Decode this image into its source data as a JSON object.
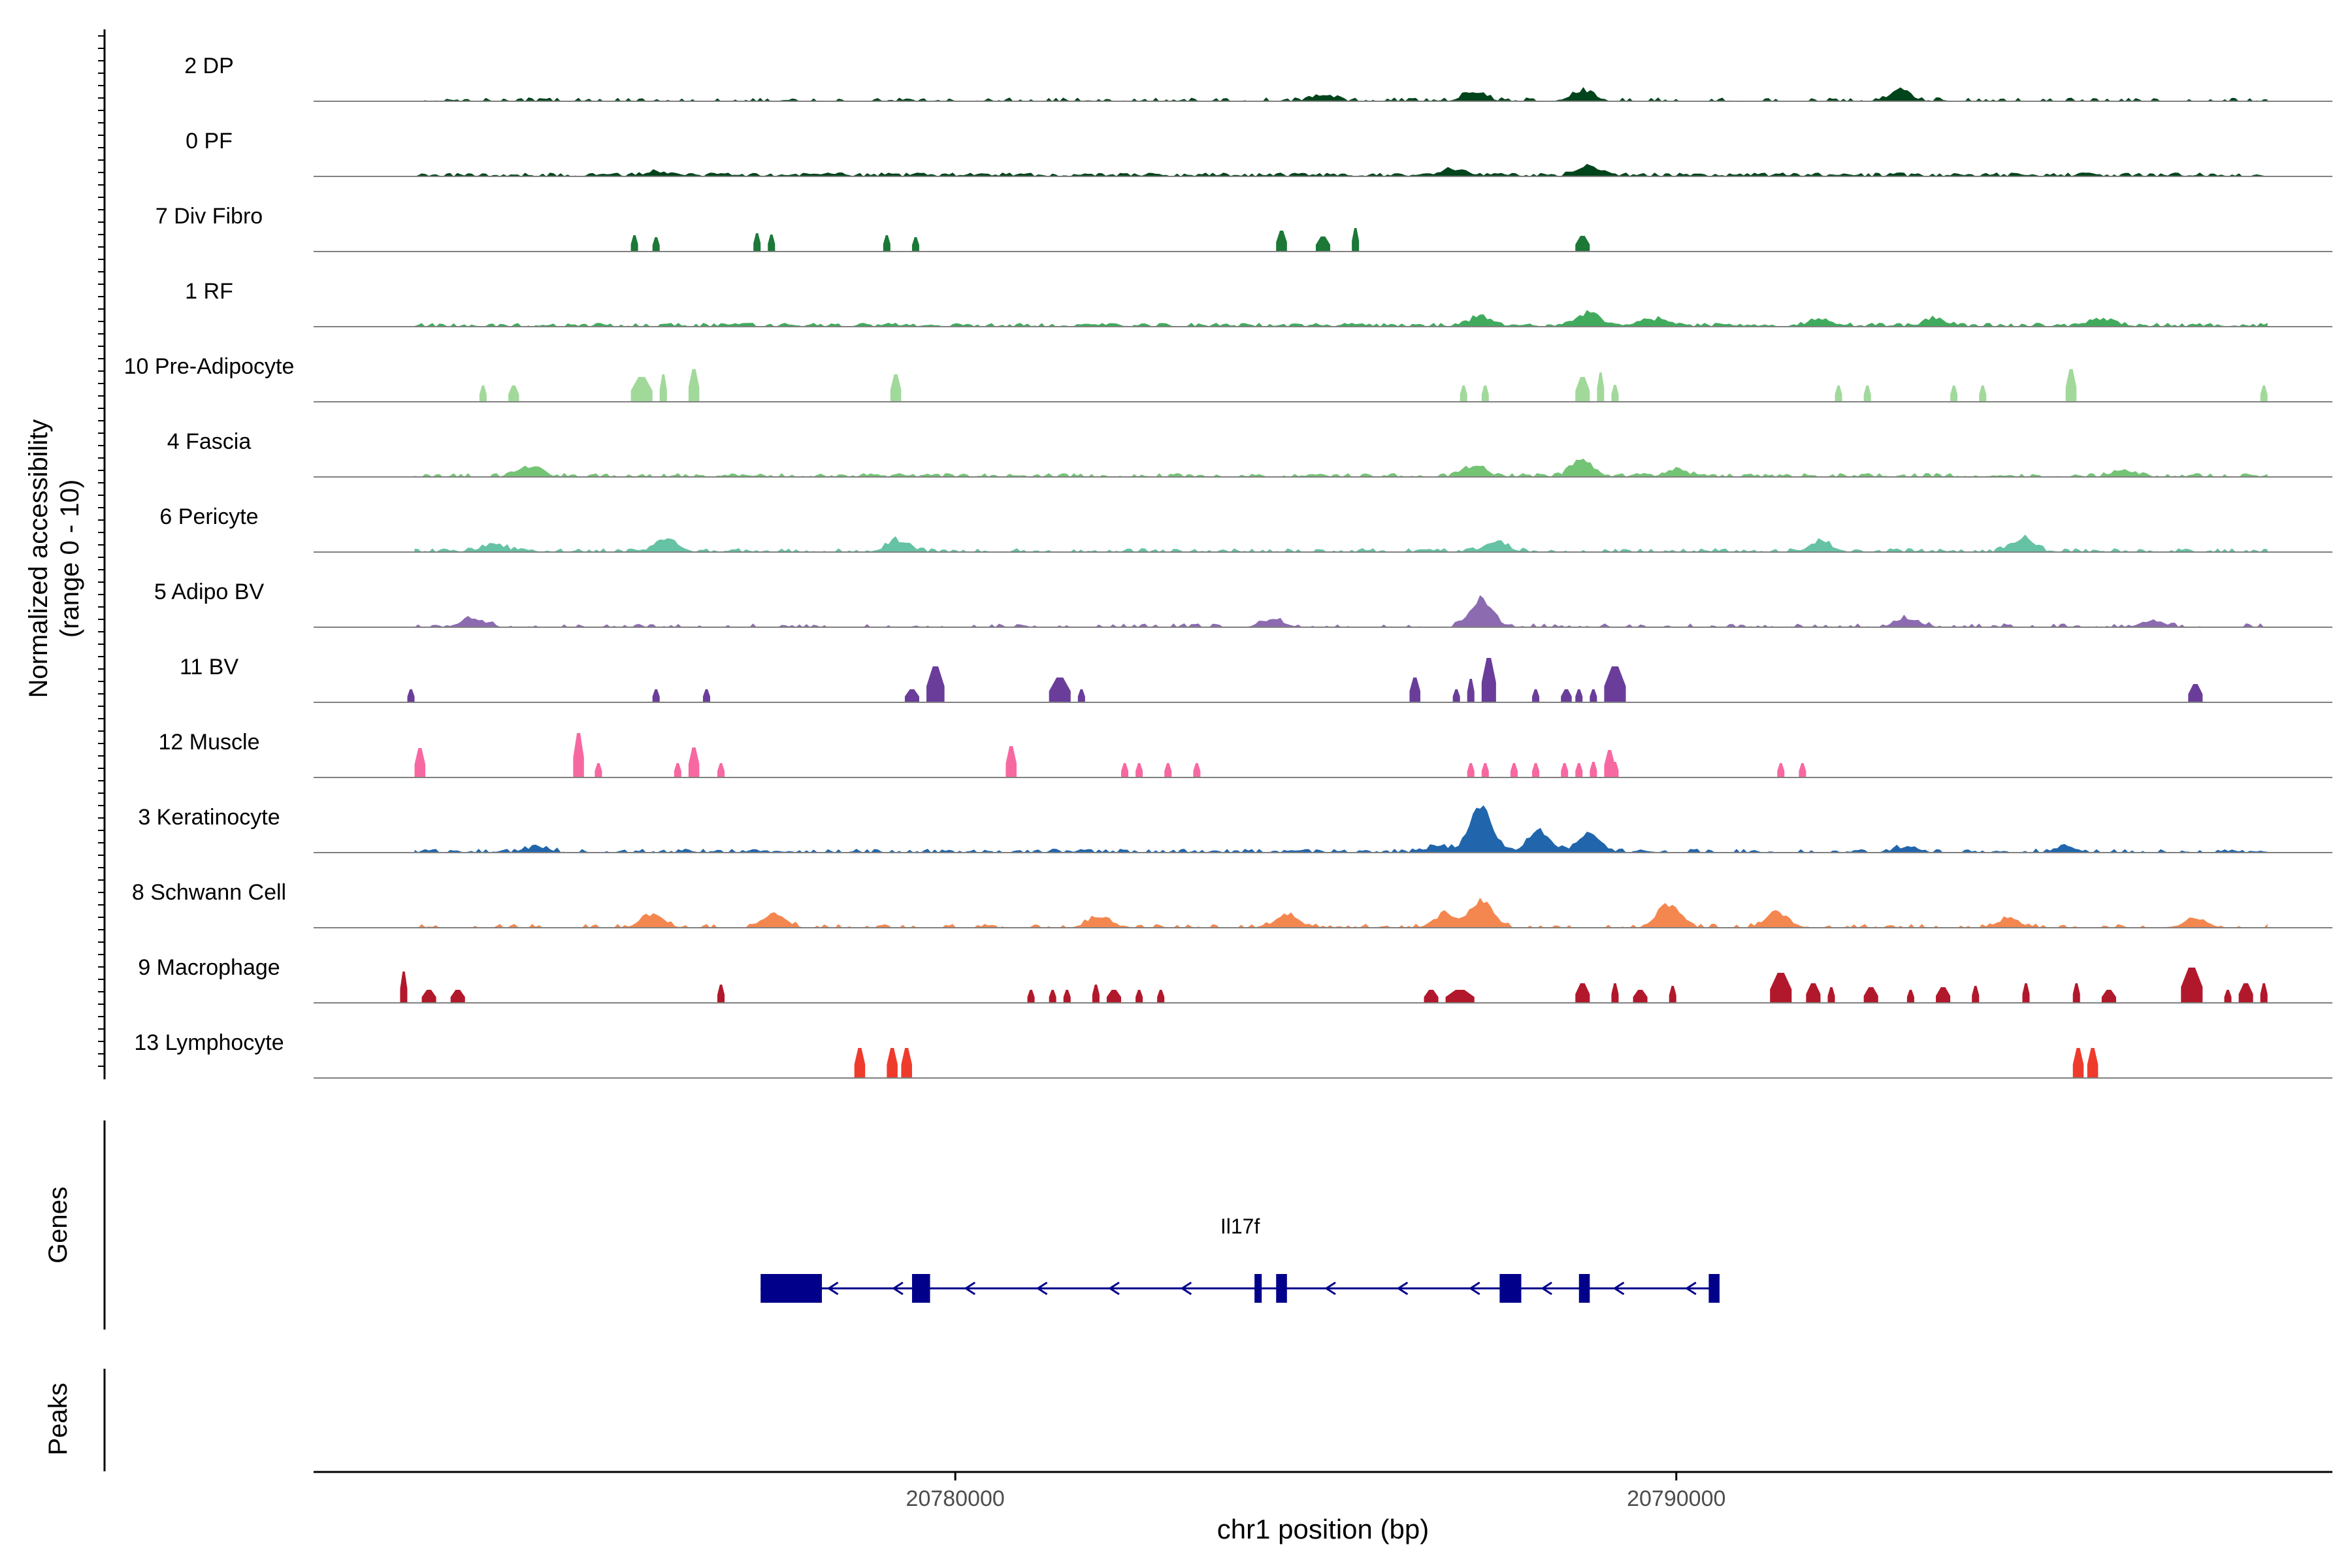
{
  "chart_data": {
    "type": "area",
    "title": "",
    "xlabel": "chr1 position (bp)",
    "ylabel": "Normalized accessibility",
    "ylabel_range": "(range 0 - 10)",
    "ylim": [
      0,
      10
    ],
    "xlim": [
      20771100,
      20799100
    ],
    "x_ticks": [
      20780000,
      20790000
    ],
    "x_tick_labels": [
      "20780000",
      "20790000"
    ],
    "panel_labels": {
      "genes": "Genes",
      "peaks": "Peaks"
    },
    "gene": {
      "name": "Il17f",
      "strand": "-",
      "color": "#00008B",
      "start": 20777300,
      "end": 20790600,
      "exons": [
        [
          20777300,
          20778150
        ],
        [
          20779400,
          20779650
        ],
        [
          20784150,
          20784250
        ],
        [
          20784450,
          20784600
        ],
        [
          20787550,
          20787850
        ],
        [
          20788650,
          20788800
        ],
        [
          20790450,
          20790600
        ]
      ],
      "arrows": [
        20778300,
        20779200,
        20780200,
        20781200,
        20782200,
        20783200,
        20785200,
        20786200,
        20787200,
        20788200,
        20789200,
        20790200
      ]
    },
    "tracks": [
      {
        "name": "2 DP",
        "color": "#00441B",
        "style": "dense",
        "density": 0.45,
        "peaks": [
          [
            20788700,
            1.8
          ],
          [
            20787200,
            1.6
          ],
          [
            20793100,
            1.7
          ],
          [
            20785100,
            1.0
          ]
        ]
      },
      {
        "name": "0 PF",
        "color": "#00441B",
        "style": "dense",
        "density": 0.9,
        "peaks": [
          [
            20788800,
            1.5
          ],
          [
            20786900,
            1.1
          ],
          [
            20775900,
            0.7
          ]
        ]
      },
      {
        "name": "7 Div Fibro",
        "color": "#1B7837",
        "style": "blocks",
        "blocks": [
          [
            20775500,
            20775600,
            2.5
          ],
          [
            20775800,
            20775900,
            2.2
          ],
          [
            20777200,
            20777300,
            2.8
          ],
          [
            20777400,
            20777500,
            2.6
          ],
          [
            20779000,
            20779100,
            2.5
          ],
          [
            20779400,
            20779500,
            2.2
          ],
          [
            20784450,
            20784600,
            3.2
          ],
          [
            20785000,
            20785200,
            2.3
          ],
          [
            20785500,
            20785600,
            3.6
          ],
          [
            20788600,
            20788800,
            2.4
          ]
        ]
      },
      {
        "name": "1 RF",
        "color": "#41AB5D",
        "style": "dense",
        "density": 0.85,
        "peaks": [
          [
            20788800,
            2.2
          ],
          [
            20787300,
            1.6
          ],
          [
            20792000,
            1.4
          ],
          [
            20793600,
            1.3
          ],
          [
            20795900,
            1.2
          ],
          [
            20789700,
            1.2
          ]
        ]
      },
      {
        "name": "10 Pre-Adipocyte",
        "color": "#A1D99B",
        "style": "blocks",
        "blocks": [
          [
            20773400,
            20773500,
            2.5
          ],
          [
            20773800,
            20773950,
            2.5
          ],
          [
            20775500,
            20775800,
            3.8
          ],
          [
            20775900,
            20776000,
            4.2
          ],
          [
            20776300,
            20776450,
            5.0
          ],
          [
            20779100,
            20779250,
            4.2
          ],
          [
            20787000,
            20787100,
            2.5
          ],
          [
            20787300,
            20787400,
            2.5
          ],
          [
            20788600,
            20788800,
            3.8
          ],
          [
            20788900,
            20789000,
            4.5
          ],
          [
            20789100,
            20789200,
            2.6
          ],
          [
            20792200,
            20792300,
            2.5
          ],
          [
            20792600,
            20792700,
            2.5
          ],
          [
            20793800,
            20793900,
            2.5
          ],
          [
            20794200,
            20794300,
            2.5
          ],
          [
            20795400,
            20795550,
            5.0
          ],
          [
            20798100,
            20798200,
            2.5
          ]
        ]
      },
      {
        "name": "4 Fascia",
        "color": "#74C476",
        "style": "dense",
        "density": 0.7,
        "peaks": [
          [
            20788700,
            2.8
          ],
          [
            20787200,
            1.8
          ],
          [
            20774100,
            1.8
          ],
          [
            20796200,
            1.2
          ],
          [
            20790000,
            1.2
          ]
        ]
      },
      {
        "name": "6 Pericyte",
        "color": "#66C2A4",
        "style": "dense",
        "density": 0.55,
        "peaks": [
          [
            20776000,
            2.4
          ],
          [
            20779200,
            2.0
          ],
          [
            20794800,
            2.3
          ],
          [
            20787500,
            1.8
          ],
          [
            20773600,
            1.4
          ],
          [
            20792000,
            1.8
          ]
        ]
      },
      {
        "name": "5 Adipo BV",
        "color": "#8C6BB1",
        "style": "dense",
        "density": 0.38,
        "peaks": [
          [
            20787300,
            4.6
          ],
          [
            20773300,
            1.6
          ],
          [
            20793200,
            1.6
          ],
          [
            20784400,
            1.4
          ],
          [
            20796600,
            1.2
          ]
        ]
      },
      {
        "name": "11 BV",
        "color": "#6A3D9A",
        "style": "blocks",
        "blocks": [
          [
            20772400,
            20772500,
            2.0
          ],
          [
            20775800,
            20775900,
            2.0
          ],
          [
            20776500,
            20776600,
            2.0
          ],
          [
            20779300,
            20779500,
            2.0
          ],
          [
            20779600,
            20779850,
            5.5
          ],
          [
            20781300,
            20781600,
            3.8
          ],
          [
            20781700,
            20781800,
            2.0
          ],
          [
            20786300,
            20786450,
            3.8
          ],
          [
            20786900,
            20787000,
            2.0
          ],
          [
            20787100,
            20787200,
            3.6
          ],
          [
            20787300,
            20787500,
            6.8
          ],
          [
            20788000,
            20788100,
            2.0
          ],
          [
            20788400,
            20788550,
            2.0
          ],
          [
            20788600,
            20788700,
            2.0
          ],
          [
            20788800,
            20788900,
            2.0
          ],
          [
            20789000,
            20789300,
            5.5
          ],
          [
            20797100,
            20797300,
            2.8
          ]
        ]
      },
      {
        "name": "12 Muscle",
        "color": "#F768A1",
        "style": "blocks",
        "blocks": [
          [
            20772500,
            20772650,
            4.5
          ],
          [
            20774700,
            20774850,
            6.8
          ],
          [
            20775000,
            20775100,
            2.2
          ],
          [
            20776100,
            20776200,
            2.2
          ],
          [
            20776300,
            20776450,
            4.6
          ],
          [
            20776700,
            20776800,
            2.2
          ],
          [
            20780700,
            20780850,
            4.8
          ],
          [
            20782300,
            20782400,
            2.2
          ],
          [
            20782500,
            20782600,
            2.2
          ],
          [
            20782900,
            20783000,
            2.2
          ],
          [
            20783300,
            20783400,
            2.2
          ],
          [
            20787100,
            20787200,
            2.2
          ],
          [
            20787300,
            20787400,
            2.2
          ],
          [
            20787700,
            20787800,
            2.2
          ],
          [
            20788000,
            20788100,
            2.2
          ],
          [
            20788400,
            20788500,
            2.2
          ],
          [
            20788600,
            20788700,
            2.2
          ],
          [
            20788800,
            20788900,
            2.4
          ],
          [
            20789100,
            20789200,
            2.4
          ],
          [
            20789000,
            20789150,
            4.2
          ],
          [
            20791400,
            20791500,
            2.2
          ],
          [
            20791700,
            20791800,
            2.2
          ]
        ]
      },
      {
        "name": "3 Keratinocyte",
        "color": "#2166AC",
        "style": "dense",
        "density": 0.6,
        "peaks": [
          [
            20787300,
            8.0
          ],
          [
            20788100,
            3.6
          ],
          [
            20788800,
            3.0
          ],
          [
            20786700,
            1.2
          ],
          [
            20774200,
            1.0
          ],
          [
            20795400,
            1.0
          ],
          [
            20793200,
            1.0
          ]
        ]
      },
      {
        "name": "8 Schwann Cell",
        "color": "#F4874F",
        "style": "dense",
        "density": 0.38,
        "peaks": [
          [
            20789900,
            4.2
          ],
          [
            20787300,
            4.8
          ],
          [
            20786800,
            2.4
          ],
          [
            20775800,
            2.4
          ],
          [
            20777500,
            2.4
          ],
          [
            20791400,
            2.6
          ],
          [
            20784600,
            2.3
          ],
          [
            20782000,
            1.8
          ],
          [
            20797200,
            1.6
          ],
          [
            20794600,
            1.5
          ]
        ]
      },
      {
        "name": "9 Macrophage",
        "color": "#B2182B",
        "style": "blocks",
        "blocks": [
          [
            20772300,
            20772400,
            4.8
          ],
          [
            20772600,
            20772800,
            2.0
          ],
          [
            20773000,
            20773200,
            2.0
          ],
          [
            20776700,
            20776800,
            2.8
          ],
          [
            20781000,
            20781100,
            2.0
          ],
          [
            20781300,
            20781400,
            2.0
          ],
          [
            20781500,
            20781600,
            2.0
          ],
          [
            20781900,
            20782000,
            2.8
          ],
          [
            20782100,
            20782300,
            2.0
          ],
          [
            20782500,
            20782600,
            2.0
          ],
          [
            20782800,
            20782900,
            2.0
          ],
          [
            20786500,
            20786700,
            2.0
          ],
          [
            20786800,
            20787200,
            2.0
          ],
          [
            20788600,
            20788800,
            3.0
          ],
          [
            20789100,
            20789200,
            3.0
          ],
          [
            20789400,
            20789600,
            2.0
          ],
          [
            20789900,
            20790000,
            2.6
          ],
          [
            20791300,
            20791600,
            4.6
          ],
          [
            20791800,
            20792000,
            3.0
          ],
          [
            20792100,
            20792200,
            2.4
          ],
          [
            20792600,
            20792800,
            2.4
          ],
          [
            20793200,
            20793300,
            2.0
          ],
          [
            20793600,
            20793800,
            2.4
          ],
          [
            20794100,
            20794200,
            2.6
          ],
          [
            20794800,
            20794900,
            3.0
          ],
          [
            20795500,
            20795600,
            3.0
          ],
          [
            20795900,
            20796100,
            2.0
          ],
          [
            20797000,
            20797300,
            5.4
          ],
          [
            20797600,
            20797700,
            2.0
          ],
          [
            20797800,
            20798000,
            3.0
          ],
          [
            20798100,
            20798200,
            3.0
          ]
        ]
      },
      {
        "name": "13 Lymphocyte",
        "color": "#EF3B2C",
        "style": "blocks",
        "blocks": [
          [
            20778600,
            20778750,
            4.6
          ],
          [
            20779050,
            20779200,
            4.6
          ],
          [
            20779250,
            20779400,
            4.6
          ],
          [
            20795500,
            20795650,
            4.6
          ],
          [
            20795700,
            20795850,
            4.6
          ]
        ]
      }
    ]
  }
}
